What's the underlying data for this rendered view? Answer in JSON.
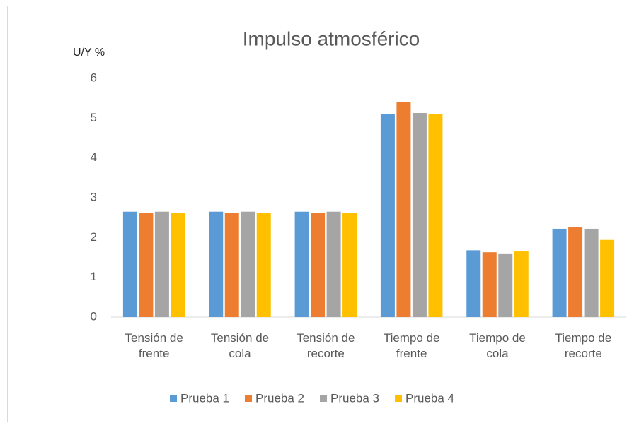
{
  "chart_data": {
    "type": "bar",
    "title": "Impulso atmosférico",
    "y_label": "U/Y %",
    "categories": [
      "Tensión de frente",
      "Tensión de cola",
      "Tensión de recorte",
      "Tiempo de frente",
      "Tiempo de cola",
      "Tiempo de recorte"
    ],
    "series": [
      {
        "name": "Prueba 1",
        "color": "#5b9bd5",
        "values": [
          2.65,
          2.65,
          2.65,
          5.1,
          1.68,
          2.22
        ]
      },
      {
        "name": "Prueba 2",
        "color": "#ed7d31",
        "values": [
          2.62,
          2.62,
          2.62,
          5.4,
          1.63,
          2.27
        ]
      },
      {
        "name": "Prueba 3",
        "color": "#a5a5a5",
        "values": [
          2.65,
          2.65,
          2.65,
          5.13,
          1.6,
          2.22
        ]
      },
      {
        "name": "Prueba 4",
        "color": "#ffc000",
        "values": [
          2.62,
          2.62,
          2.62,
          5.1,
          1.65,
          1.94
        ]
      }
    ],
    "ylim": [
      0,
      6
    ],
    "yticks": [
      0,
      1,
      2,
      3,
      4,
      5,
      6
    ],
    "grid": false,
    "legend": "bottom"
  }
}
